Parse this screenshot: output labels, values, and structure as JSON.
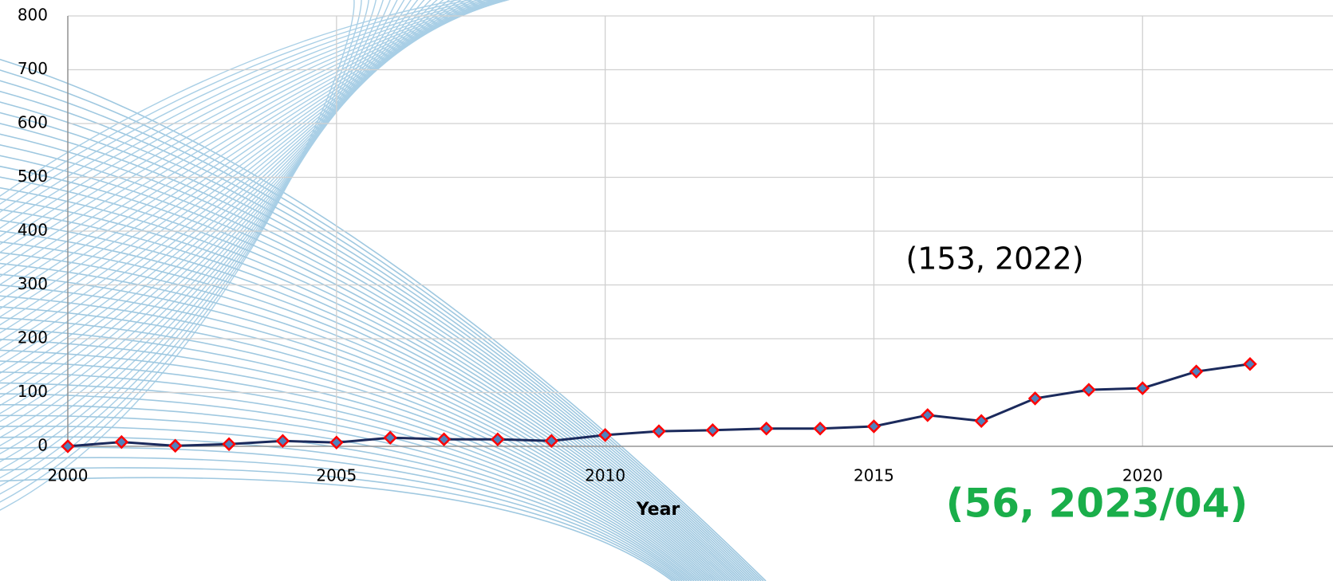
{
  "chart_data": {
    "type": "line",
    "x": [
      2000,
      2001,
      2002,
      2003,
      2004,
      2005,
      2006,
      2007,
      2008,
      2009,
      2010,
      2011,
      2012,
      2013,
      2014,
      2015,
      2016,
      2017,
      2018,
      2019,
      2020,
      2021,
      2022
    ],
    "values": [
      0,
      8,
      1,
      4,
      10,
      7,
      16,
      13,
      13,
      10,
      21,
      28,
      30,
      33,
      33,
      37,
      58,
      47,
      89,
      105,
      108,
      139,
      153
    ],
    "color": "#1b2a5c",
    "marker_fill": "#4f81bd",
    "marker_edge": "#ff0000",
    "x_label": "Year",
    "xlim": [
      2000,
      2022
    ],
    "xticks": [
      2000,
      2005,
      2010,
      2015,
      2020
    ],
    "ylim": [
      0,
      800
    ],
    "yticks": [
      0,
      100,
      200,
      300,
      400,
      500,
      600,
      700,
      800
    ],
    "grid": true,
    "annotations": [
      "(153, 2022)",
      "(56, 2023/04)"
    ]
  }
}
